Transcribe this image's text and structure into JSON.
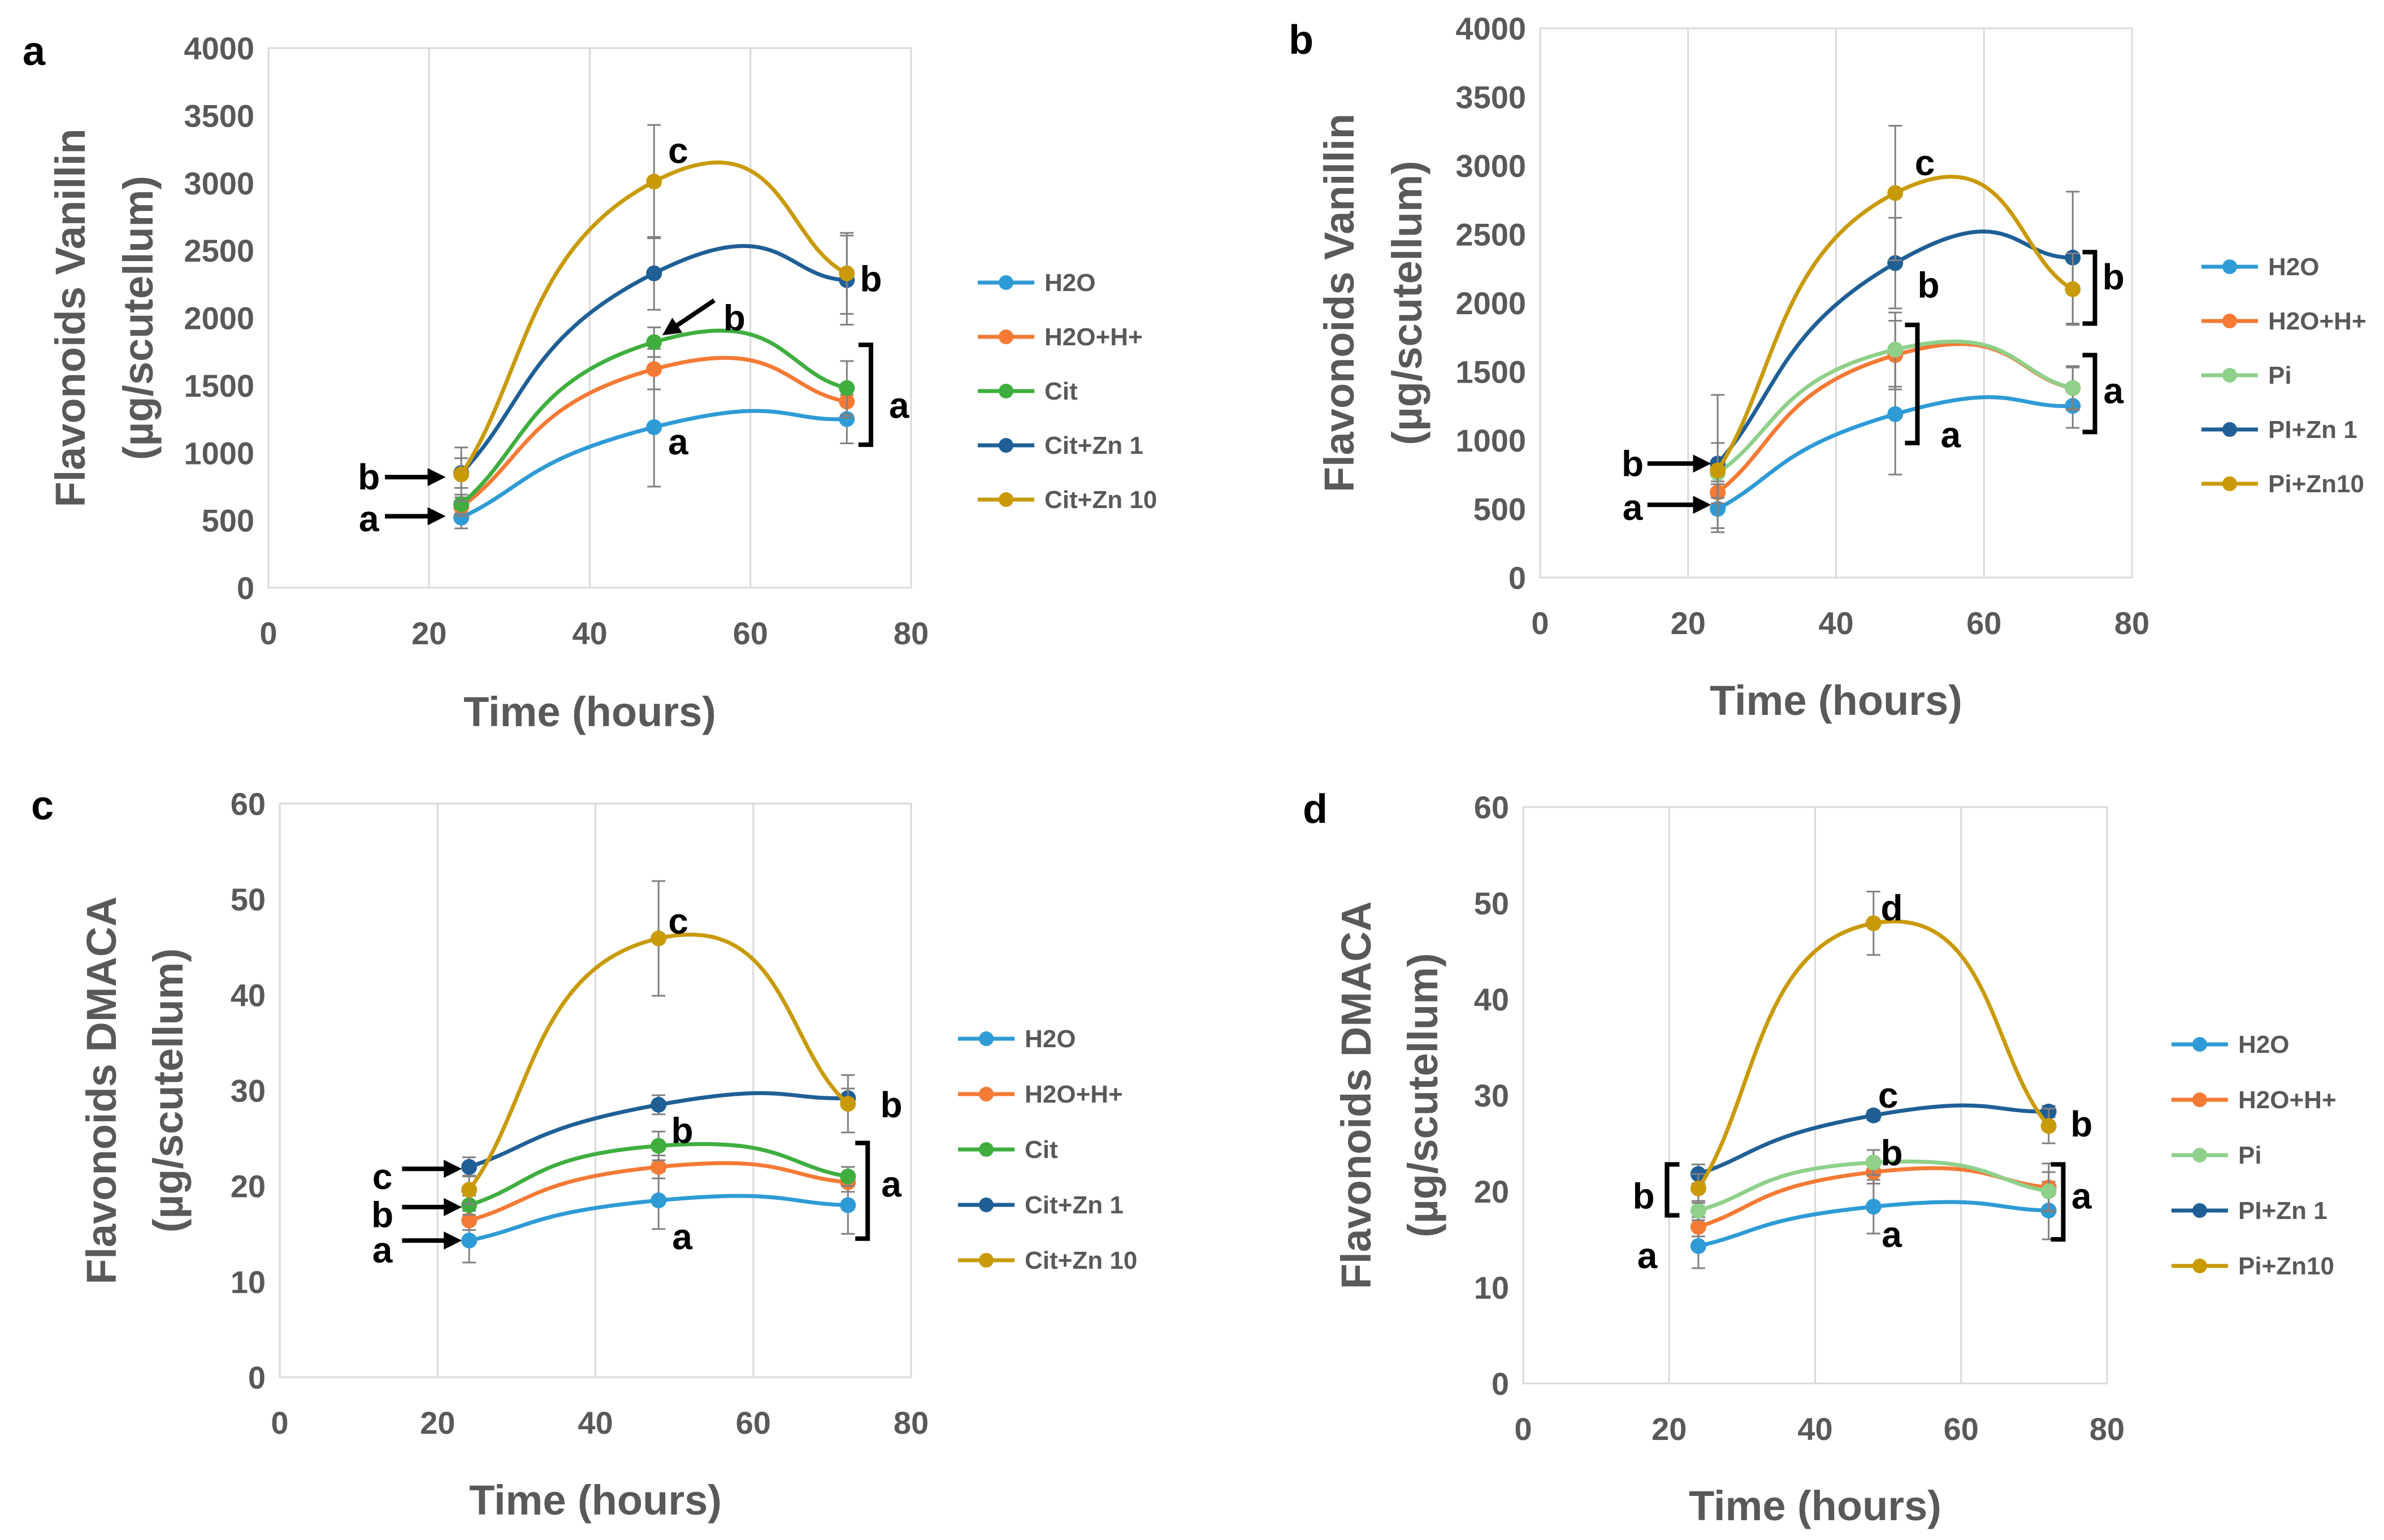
{
  "colors": {
    "H2O": "#2e9bd6",
    "H2O+H+": "#f47a35",
    "Cit": "#3fae3f",
    "Pi": "#8fd08a",
    "Zn1": "#1f5f96",
    "Zn10": "#c99a08",
    "axis_text": "#595959",
    "grid": "#d9d9d9",
    "annot": "#000000",
    "error_bar": "#808080"
  },
  "chart_data": [
    {
      "panel": "a",
      "type": "line",
      "smooth": true,
      "title": "",
      "ylabel": "Flavonoids Vanillin",
      "ylabel2": "(µg/scutellum)",
      "xlabel": "Time (hours)",
      "xlim": [
        0,
        80
      ],
      "xticks": [
        0,
        20,
        40,
        60,
        80
      ],
      "ylim": [
        0,
        4000
      ],
      "yticks": [
        0,
        500,
        1000,
        1500,
        2000,
        2500,
        3000,
        3500,
        4000
      ],
      "grid": "vertical",
      "legend": "right",
      "x": [
        24,
        48,
        72
      ],
      "series": [
        {
          "name": "H2O",
          "color_key": "H2O",
          "values": [
            520,
            1190,
            1250
          ],
          "errors": [
            80,
            440,
            180
          ]
        },
        {
          "name": "H2O+H+",
          "color_key": "H2O+H+",
          "values": [
            600,
            1620,
            1380
          ],
          "errors": [
            70,
            150,
            120
          ]
        },
        {
          "name": "Cit",
          "color_key": "Cit",
          "values": [
            620,
            1820,
            1480
          ],
          "errors": [
            70,
            110,
            200
          ]
        },
        {
          "name": "Cit+Zn 1",
          "color_key": "Zn1",
          "values": [
            850,
            2330,
            2280
          ],
          "errors": [
            110,
            270,
            330
          ]
        },
        {
          "name": "Cit+Zn 10",
          "color_key": "Zn10",
          "values": [
            840,
            3010,
            2330
          ],
          "errors": [
            200,
            420,
            300
          ]
        }
      ],
      "annotations": [
        {
          "text": "c",
          "x": 51,
          "y": 3240
        },
        {
          "text": "b",
          "x": 75,
          "y": 2290
        },
        {
          "text": "b",
          "x": 58,
          "y": 2000
        },
        {
          "text": "a",
          "x": 51,
          "y": 1080
        },
        {
          "text": "a",
          "x": 78.5,
          "y": 1350
        },
        {
          "text": "b",
          "x": 12.5,
          "y": 820
        },
        {
          "text": "a",
          "x": 12.5,
          "y": 510
        }
      ],
      "arrows": [
        {
          "x1": 14.5,
          "y1": 820,
          "x2": 21.5,
          "y2": 820
        },
        {
          "x1": 14.5,
          "y1": 530,
          "x2": 21.5,
          "y2": 530
        },
        {
          "x1": 55.5,
          "y1": 2130,
          "x2": 49.5,
          "y2": 1890
        }
      ],
      "brackets": [
        {
          "x": 75,
          "y0": 1060,
          "y1": 1800,
          "side": "right"
        }
      ]
    },
    {
      "panel": "b",
      "type": "line",
      "smooth": true,
      "title": "",
      "ylabel": "Flavonoids Vanillin",
      "ylabel2": "(µg/scutellum)",
      "xlabel": "Time (hours)",
      "xlim": [
        0,
        80
      ],
      "xticks": [
        0,
        20,
        40,
        60,
        80
      ],
      "ylim": [
        0,
        4000
      ],
      "yticks": [
        0,
        500,
        1000,
        1500,
        2000,
        2500,
        3000,
        3500,
        4000
      ],
      "grid": "vertical",
      "legend": "right",
      "x": [
        24,
        48,
        72
      ],
      "series": [
        {
          "name": "H2O",
          "color_key": "H2O",
          "values": [
            500,
            1190,
            1250
          ],
          "errors": [
            140,
            440,
            160
          ]
        },
        {
          "name": "H2O+H+",
          "color_key": "H2O+H+",
          "values": [
            620,
            1620,
            1380
          ],
          "errors": [
            80,
            250,
            150
          ]
        },
        {
          "name": "Pi",
          "color_key": "Pi",
          "values": [
            760,
            1660,
            1380
          ],
          "errors": [
            80,
            270,
            160
          ]
        },
        {
          "name": "PI+Zn 1",
          "color_key": "Zn1",
          "values": [
            830,
            2290,
            2330
          ],
          "errors": [
            500,
            330,
            480
          ]
        },
        {
          "name": "Pi+Zn10",
          "color_key": "Zn10",
          "values": [
            780,
            2800,
            2100
          ],
          "errors": [
            200,
            490,
            260
          ]
        }
      ],
      "annotations": [
        {
          "text": "c",
          "x": 52,
          "y": 3020
        },
        {
          "text": "b",
          "x": 52.5,
          "y": 2130
        },
        {
          "text": "b",
          "x": 77.5,
          "y": 2190
        },
        {
          "text": "a",
          "x": 55.5,
          "y": 1040
        },
        {
          "text": "a",
          "x": 77.5,
          "y": 1360
        },
        {
          "text": "b",
          "x": 12.5,
          "y": 830
        },
        {
          "text": "a",
          "x": 12.5,
          "y": 510
        }
      ],
      "arrows": [
        {
          "x1": 14.5,
          "y1": 830,
          "x2": 22.5,
          "y2": 830
        },
        {
          "x1": 14.5,
          "y1": 530,
          "x2": 22.5,
          "y2": 530
        }
      ],
      "brackets": [
        {
          "x": 75,
          "y0": 1850,
          "y1": 2370,
          "side": "right"
        },
        {
          "x": 75,
          "y0": 1060,
          "y1": 1620,
          "side": "right"
        },
        {
          "x": 51,
          "y0": 980,
          "y1": 1840,
          "side": "right"
        }
      ]
    },
    {
      "panel": "c",
      "type": "line",
      "smooth": true,
      "title": "",
      "ylabel": "Flavonoids DMACA",
      "ylabel2": "(µg/scutellum)",
      "xlabel": "Time (hours)",
      "xlim": [
        0,
        80
      ],
      "xticks": [
        0,
        20,
        40,
        60,
        80
      ],
      "ylim": [
        0,
        60
      ],
      "yticks": [
        0,
        10,
        20,
        30,
        40,
        50,
        60
      ],
      "grid": "vertical",
      "legend": "right",
      "x": [
        24,
        48,
        72
      ],
      "series": [
        {
          "name": "H2O",
          "color_key": "H2O",
          "values": [
            14.3,
            18.5,
            18.0
          ],
          "errors": [
            2.3,
            3.0,
            3.0
          ]
        },
        {
          "name": "H2O+H+",
          "color_key": "H2O+H+",
          "values": [
            16.4,
            22.0,
            20.4
          ],
          "errors": [
            1.0,
            1.2,
            1.0
          ]
        },
        {
          "name": "Cit",
          "color_key": "Cit",
          "values": [
            18.0,
            24.2,
            21.0
          ],
          "errors": [
            1.0,
            1.5,
            1.0
          ]
        },
        {
          "name": "Cit+Zn 1",
          "color_key": "Zn1",
          "values": [
            22.0,
            28.5,
            29.2
          ],
          "errors": [
            1.0,
            1.0,
            1.0
          ]
        },
        {
          "name": "Cit+Zn 10",
          "color_key": "Zn10",
          "values": [
            19.6,
            45.9,
            28.6
          ],
          "errors": [
            1.5,
            6.0,
            3.0
          ]
        }
      ],
      "annotations": [
        {
          "text": "c",
          "x": 50.5,
          "y": 47.7
        },
        {
          "text": "b",
          "x": 77.5,
          "y": 28.5
        },
        {
          "text": "b",
          "x": 51,
          "y": 25.8
        },
        {
          "text": "a",
          "x": 51,
          "y": 14.7
        },
        {
          "text": "a",
          "x": 77.5,
          "y": 20.2
        },
        {
          "text": "c",
          "x": 13,
          "y": 21.0
        },
        {
          "text": "b",
          "x": 13,
          "y": 17.0
        },
        {
          "text": "a",
          "x": 13,
          "y": 13.3
        }
      ],
      "arrows": [
        {
          "x1": 15.5,
          "y1": 21.8,
          "x2": 22.5,
          "y2": 21.8
        },
        {
          "x1": 15.5,
          "y1": 17.8,
          "x2": 22.5,
          "y2": 17.8
        },
        {
          "x1": 15.5,
          "y1": 14.3,
          "x2": 22.5,
          "y2": 14.3
        }
      ],
      "brackets": [
        {
          "x": 74.5,
          "y0": 14.5,
          "y1": 24.5,
          "side": "right"
        }
      ]
    },
    {
      "panel": "d",
      "type": "line",
      "smooth": true,
      "title": "",
      "ylabel": "Flavonoids DMACA",
      "ylabel2": "(µg/scutellum)",
      "xlabel": "Time (hours)",
      "xlim": [
        0,
        80
      ],
      "xticks": [
        0,
        20,
        40,
        60,
        80
      ],
      "ylim": [
        0,
        60
      ],
      "yticks": [
        0,
        10,
        20,
        30,
        40,
        50,
        60
      ],
      "grid": "vertical",
      "legend": "right",
      "x": [
        24,
        48,
        72
      ],
      "series": [
        {
          "name": "H2O",
          "color_key": "H2O",
          "values": [
            14.3,
            18.4,
            18.0
          ],
          "errors": [
            2.3,
            2.8,
            3.0
          ]
        },
        {
          "name": "H2O+H+",
          "color_key": "H2O+H+",
          "values": [
            16.3,
            22.0,
            20.4
          ],
          "errors": [
            1.0,
            1.2,
            2.5
          ]
        },
        {
          "name": "Pi",
          "color_key": "Pi",
          "values": [
            18.0,
            23.0,
            20.0
          ],
          "errors": [
            1.0,
            1.3,
            2.0
          ]
        },
        {
          "name": "PI+Zn 1",
          "color_key": "Zn1",
          "values": [
            21.8,
            27.9,
            28.3
          ],
          "errors": [
            1.0,
            0.5,
            0.6
          ]
        },
        {
          "name": "Pi+Zn10",
          "color_key": "Zn10",
          "values": [
            20.3,
            47.9,
            26.8
          ],
          "errors": [
            1.5,
            3.3,
            1.8
          ]
        }
      ],
      "annotations": [
        {
          "text": "d",
          "x": 50.5,
          "y": 49.5
        },
        {
          "text": "c",
          "x": 50,
          "y": 30.0
        },
        {
          "text": "b",
          "x": 50.5,
          "y": 24.0
        },
        {
          "text": "a",
          "x": 50.5,
          "y": 15.5
        },
        {
          "text": "b",
          "x": 76.5,
          "y": 27.0
        },
        {
          "text": "a",
          "x": 76.5,
          "y": 19.5
        },
        {
          "text": "b",
          "x": 16.5,
          "y": 19.5
        },
        {
          "text": "a",
          "x": 17,
          "y": 13.3
        }
      ],
      "arrows": [],
      "brackets": [
        {
          "x": 19.7,
          "y0": 17.5,
          "y1": 22.8,
          "side": "left"
        },
        {
          "x": 74,
          "y0": 15.0,
          "y1": 22.8,
          "side": "right"
        }
      ]
    }
  ]
}
